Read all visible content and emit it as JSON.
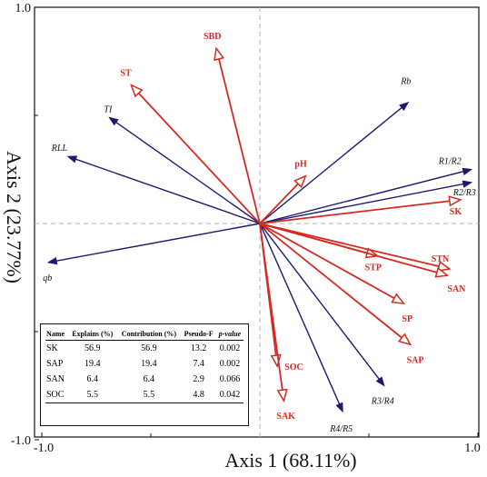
{
  "chart_data": {
    "type": "biplot",
    "xlabel": "Axis 1 (68.11%)",
    "ylabel": "Axis 2 (23.77%)",
    "xlim": [
      -1.0,
      1.0
    ],
    "ylim": [
      -1.0,
      1.0
    ],
    "tick_labels": {
      "x_min": "-1.0",
      "x_max": "1.0",
      "y_max": "1.0",
      "y_min": "-1.0"
    },
    "colors": {
      "response": "#1a1a6e",
      "explanatory": "#d42a22",
      "dashed": "#b0b0b0"
    },
    "response_vectors": [
      {
        "name": "Rb",
        "x": 0.68,
        "y": 0.56
      },
      {
        "name": "R1/R2",
        "x": 0.97,
        "y": 0.25
      },
      {
        "name": "R2/R3",
        "x": 0.97,
        "y": 0.19
      },
      {
        "name": "TI",
        "x": -0.69,
        "y": 0.49
      },
      {
        "name": "RLL",
        "x": -0.88,
        "y": 0.31
      },
      {
        "name": "qb",
        "x": -0.97,
        "y": -0.18
      },
      {
        "name": "R3/R4",
        "x": 0.57,
        "y": -0.75
      },
      {
        "name": "R4/R5",
        "x": 0.38,
        "y": -0.87
      }
    ],
    "explanatory_vectors": [
      {
        "name": "SBD",
        "x": -0.2,
        "y": 0.81
      },
      {
        "name": "ST",
        "x": -0.59,
        "y": 0.64
      },
      {
        "name": "pH",
        "x": 0.21,
        "y": 0.22
      },
      {
        "name": "SK",
        "x": 0.92,
        "y": 0.11
      },
      {
        "name": "STP",
        "x": 0.54,
        "y": -0.15
      },
      {
        "name": "STN",
        "x": 0.87,
        "y": -0.21
      },
      {
        "name": "SAN",
        "x": 0.86,
        "y": -0.24
      },
      {
        "name": "SP",
        "x": 0.66,
        "y": -0.37
      },
      {
        "name": "SAP",
        "x": 0.69,
        "y": -0.56
      },
      {
        "name": "SOC",
        "x": 0.08,
        "y": -0.66
      },
      {
        "name": "SAK",
        "x": 0.11,
        "y": -0.82
      }
    ]
  },
  "table": {
    "headers": [
      "Name",
      "Explains (%)",
      "Contribution (%)",
      "Pseudo-F",
      "p-value"
    ],
    "rows": [
      [
        "SK",
        "56.9",
        "56.9",
        "13.2",
        "0.002"
      ],
      [
        "SAP",
        "19.4",
        "19.4",
        "7.4",
        "0.002"
      ],
      [
        "SAN",
        "6.4",
        "6.4",
        "2.9",
        "0.066"
      ],
      [
        "SOC",
        "5.5",
        "5.5",
        "4.8",
        "0.042"
      ]
    ]
  }
}
